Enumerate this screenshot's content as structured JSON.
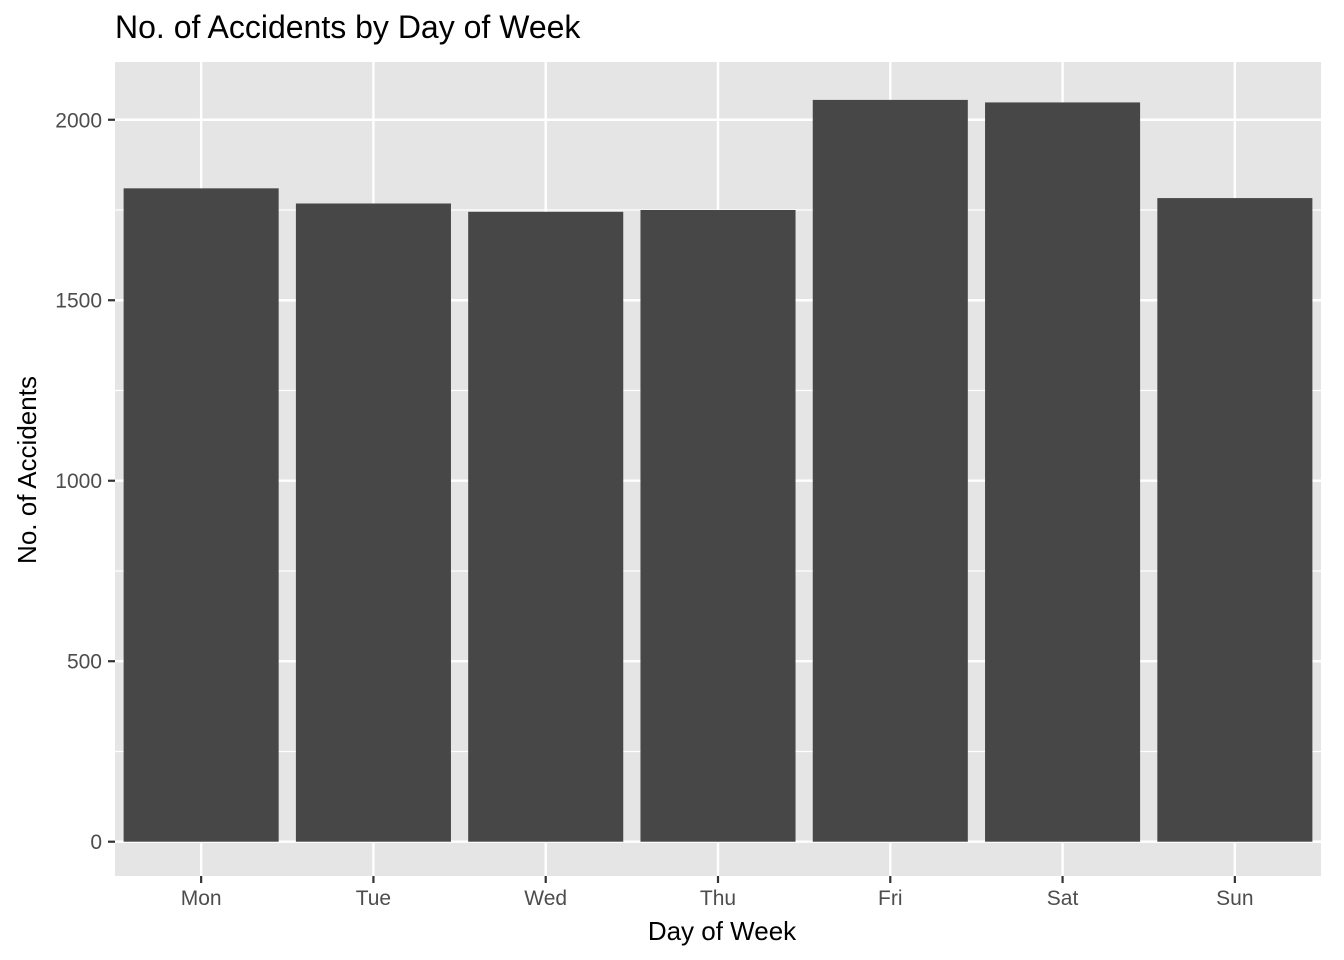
{
  "chart_data": {
    "type": "bar",
    "title": "No. of Accidents by Day of Week",
    "xlabel": "Day of Week",
    "ylabel": "No. of Accidents",
    "categories": [
      "Mon",
      "Tue",
      "Wed",
      "Thu",
      "Fri",
      "Sat",
      "Sun"
    ],
    "values": [
      1810,
      1768,
      1745,
      1750,
      2055,
      2048,
      1783
    ],
    "yticks": [
      0,
      500,
      1000,
      1500,
      2000
    ],
    "ylim": [
      -95,
      2160
    ],
    "grid": true,
    "legend": "none",
    "colors": {
      "bar": "#474747",
      "panel": "#e5e5e5",
      "grid": "#ffffff",
      "tick_label": "#4d4d4d",
      "tick_mark": "#333333"
    }
  }
}
